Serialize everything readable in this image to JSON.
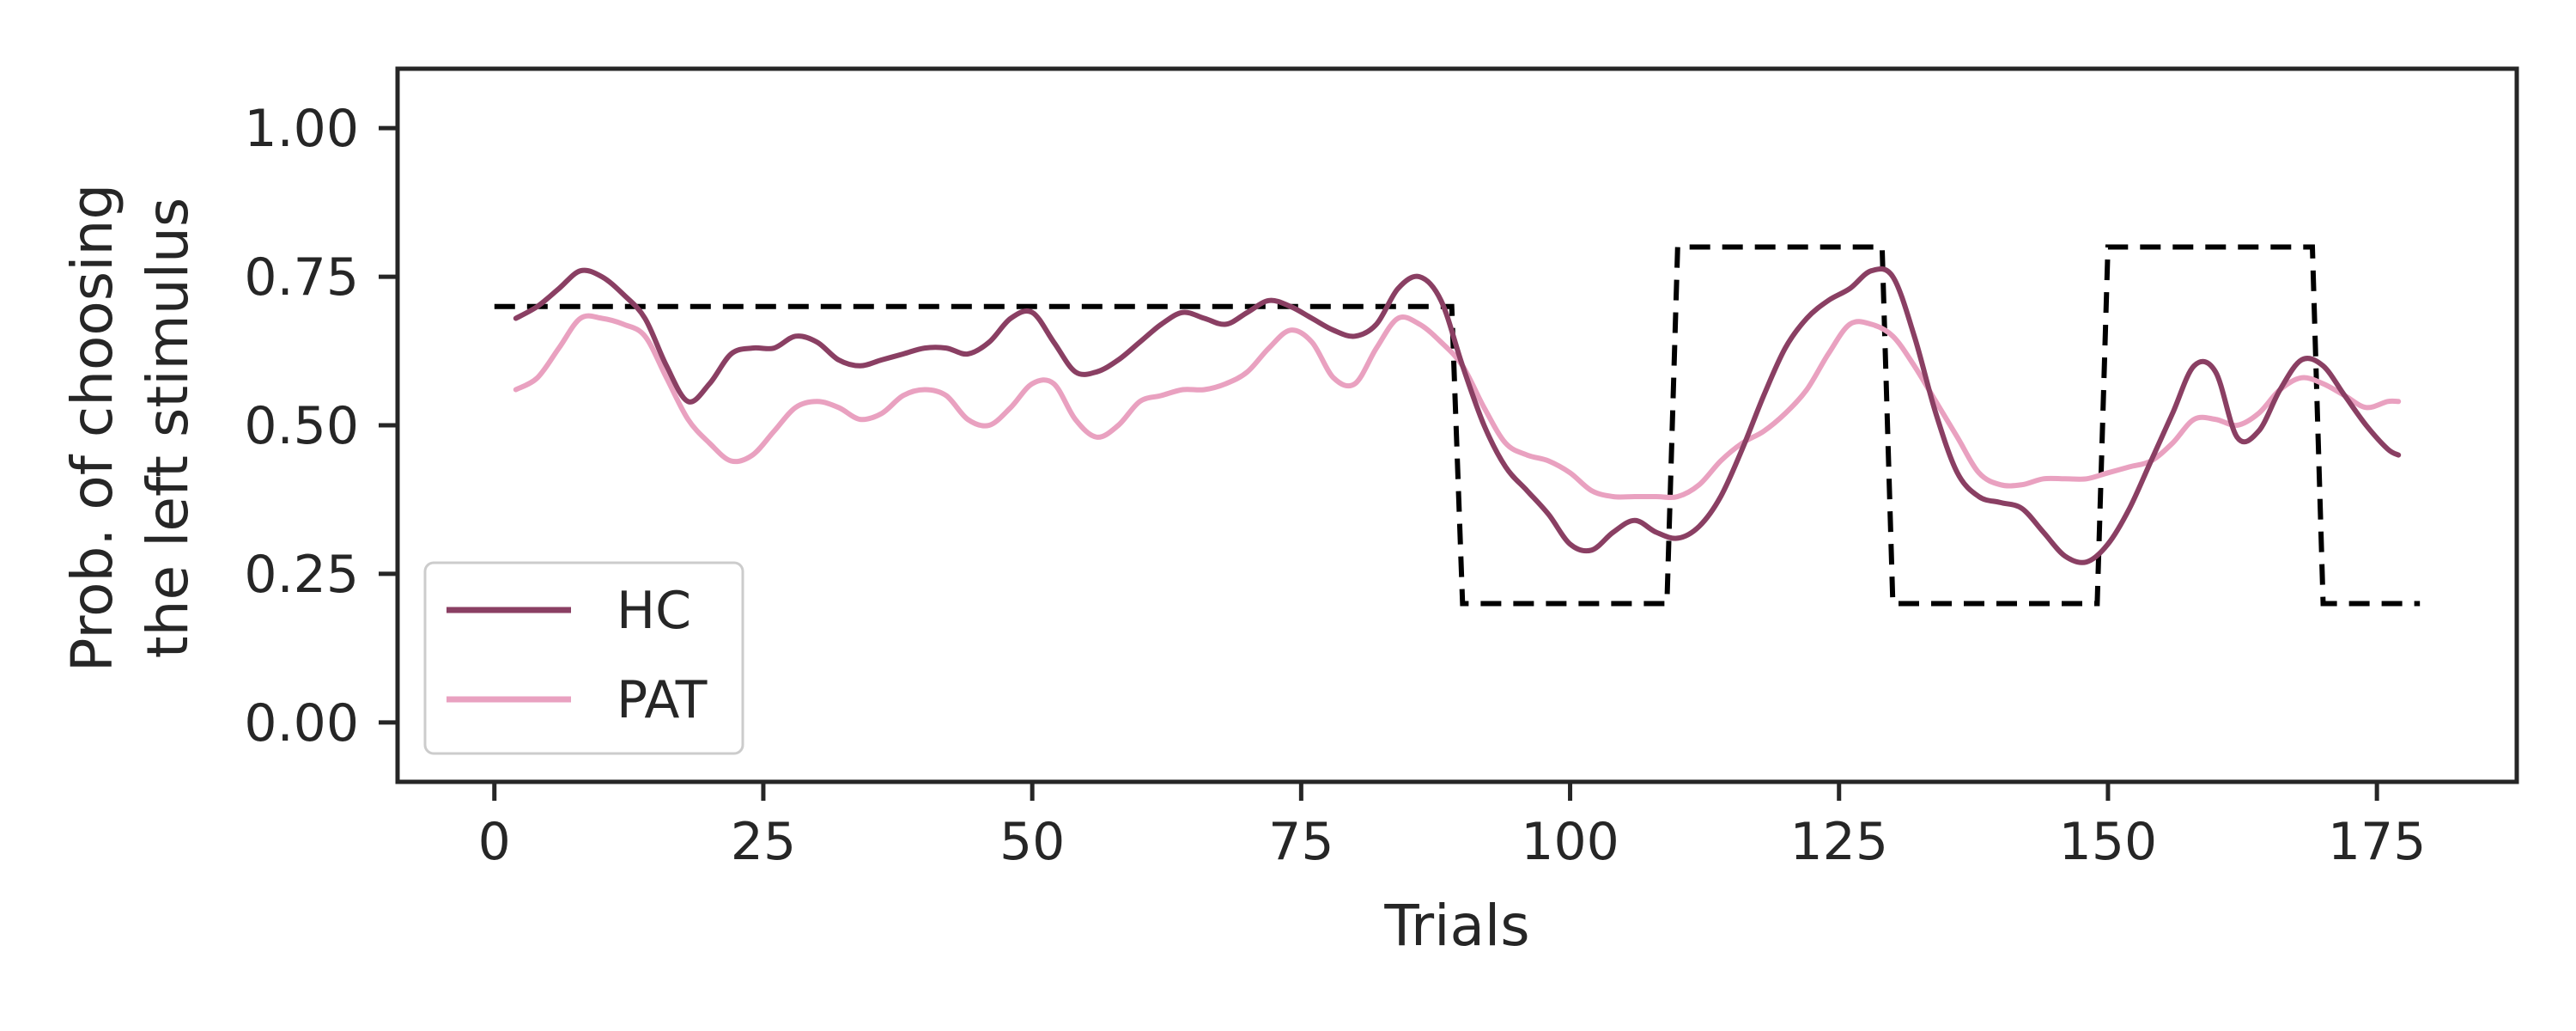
{
  "chart_data": {
    "type": "line",
    "xlabel": "Trials",
    "ylabel_line1": "Prob. of choosing",
    "ylabel_line2": "the left stimulus",
    "xlim": [
      -9,
      188
    ],
    "ylim": [
      -0.1,
      1.1
    ],
    "xticks": [
      0,
      25,
      50,
      75,
      100,
      125,
      150,
      175
    ],
    "yticks": [
      0.0,
      0.25,
      0.5,
      0.75,
      1.0
    ],
    "ytick_labels": [
      "0.00",
      "0.25",
      "0.50",
      "0.75",
      "1.00"
    ],
    "grid": false,
    "legend_position": "lower-left",
    "reference": {
      "style": "dashed",
      "color": "#000000",
      "x": [
        0,
        89,
        90,
        109,
        110,
        129,
        130,
        149,
        150,
        169,
        170,
        179
      ],
      "y": [
        0.7,
        0.7,
        0.2,
        0.2,
        0.8,
        0.8,
        0.2,
        0.2,
        0.8,
        0.8,
        0.2,
        0.2
      ]
    },
    "series": [
      {
        "name": "HC",
        "color": "#8a3f63",
        "x": [
          2,
          4,
          6,
          8,
          10,
          12,
          14,
          16,
          18,
          20,
          22,
          24,
          26,
          28,
          30,
          32,
          34,
          36,
          38,
          40,
          42,
          44,
          46,
          48,
          50,
          52,
          54,
          56,
          58,
          60,
          62,
          64,
          66,
          68,
          70,
          72,
          74,
          76,
          78,
          80,
          82,
          84,
          86,
          88,
          90,
          92,
          94,
          96,
          98,
          100,
          102,
          104,
          106,
          108,
          110,
          112,
          114,
          116,
          118,
          120,
          122,
          124,
          126,
          128,
          130,
          132,
          134,
          136,
          138,
          140,
          142,
          144,
          146,
          148,
          150,
          152,
          154,
          156,
          158,
          160,
          162,
          164,
          166,
          168,
          170,
          172,
          174,
          176,
          177
        ],
        "y": [
          0.68,
          0.7,
          0.73,
          0.76,
          0.75,
          0.72,
          0.68,
          0.6,
          0.54,
          0.57,
          0.62,
          0.63,
          0.63,
          0.65,
          0.64,
          0.61,
          0.6,
          0.61,
          0.62,
          0.63,
          0.63,
          0.62,
          0.64,
          0.68,
          0.69,
          0.64,
          0.59,
          0.59,
          0.61,
          0.64,
          0.67,
          0.69,
          0.68,
          0.67,
          0.69,
          0.71,
          0.7,
          0.68,
          0.66,
          0.65,
          0.67,
          0.73,
          0.75,
          0.71,
          0.6,
          0.5,
          0.43,
          0.39,
          0.35,
          0.3,
          0.29,
          0.32,
          0.34,
          0.32,
          0.31,
          0.33,
          0.38,
          0.46,
          0.55,
          0.63,
          0.68,
          0.71,
          0.73,
          0.76,
          0.75,
          0.65,
          0.52,
          0.42,
          0.38,
          0.37,
          0.36,
          0.32,
          0.28,
          0.27,
          0.3,
          0.36,
          0.44,
          0.52,
          0.6,
          0.59,
          0.48,
          0.49,
          0.56,
          0.61,
          0.6,
          0.55,
          0.5,
          0.46,
          0.45
        ]
      },
      {
        "name": "PAT",
        "color": "#e9a1c0",
        "x": [
          2,
          4,
          6,
          8,
          10,
          12,
          14,
          16,
          18,
          20,
          22,
          24,
          26,
          28,
          30,
          32,
          34,
          36,
          38,
          40,
          42,
          44,
          46,
          48,
          50,
          52,
          54,
          56,
          58,
          60,
          62,
          64,
          66,
          68,
          70,
          72,
          74,
          76,
          78,
          80,
          82,
          84,
          86,
          88,
          90,
          92,
          94,
          96,
          98,
          100,
          102,
          104,
          106,
          108,
          110,
          112,
          114,
          116,
          118,
          120,
          122,
          124,
          126,
          128,
          130,
          132,
          134,
          136,
          138,
          140,
          142,
          144,
          146,
          148,
          150,
          152,
          154,
          156,
          158,
          160,
          162,
          164,
          166,
          168,
          170,
          172,
          174,
          176,
          177
        ],
        "y": [
          0.56,
          0.58,
          0.63,
          0.68,
          0.68,
          0.67,
          0.65,
          0.58,
          0.51,
          0.47,
          0.44,
          0.45,
          0.49,
          0.53,
          0.54,
          0.53,
          0.51,
          0.52,
          0.55,
          0.56,
          0.55,
          0.51,
          0.5,
          0.53,
          0.57,
          0.57,
          0.51,
          0.48,
          0.5,
          0.54,
          0.55,
          0.56,
          0.56,
          0.57,
          0.59,
          0.63,
          0.66,
          0.64,
          0.58,
          0.57,
          0.63,
          0.68,
          0.67,
          0.64,
          0.6,
          0.53,
          0.47,
          0.45,
          0.44,
          0.42,
          0.39,
          0.38,
          0.38,
          0.38,
          0.38,
          0.4,
          0.44,
          0.47,
          0.49,
          0.52,
          0.56,
          0.62,
          0.67,
          0.67,
          0.65,
          0.6,
          0.54,
          0.48,
          0.42,
          0.4,
          0.4,
          0.41,
          0.41,
          0.41,
          0.42,
          0.43,
          0.44,
          0.47,
          0.51,
          0.51,
          0.5,
          0.52,
          0.56,
          0.58,
          0.57,
          0.55,
          0.53,
          0.54,
          0.54
        ]
      }
    ]
  }
}
